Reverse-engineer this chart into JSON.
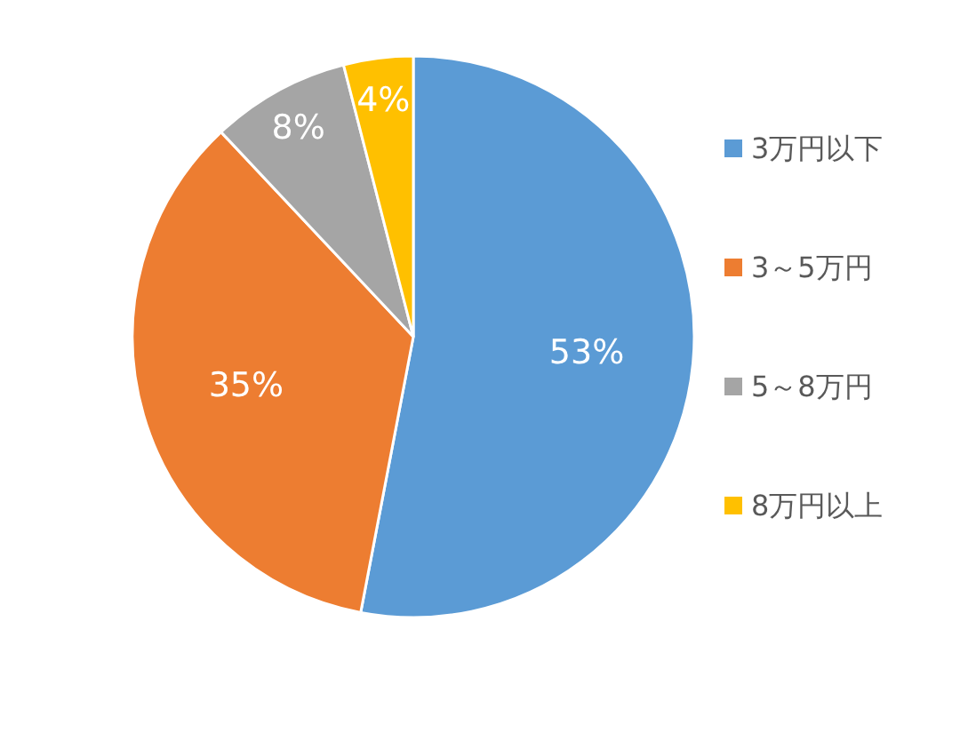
{
  "chart_data": {
    "type": "pie",
    "categories": [
      "3万円以下",
      "3～5万円",
      "5～8万円",
      "8万円以上"
    ],
    "values": [
      53,
      35,
      8,
      4
    ],
    "value_labels": [
      "53%",
      "35%",
      "8%",
      "4%"
    ],
    "colors": [
      "#5b9bd5",
      "#ed7d31",
      "#a5a5a5",
      "#ffc000"
    ],
    "legend": "right"
  }
}
